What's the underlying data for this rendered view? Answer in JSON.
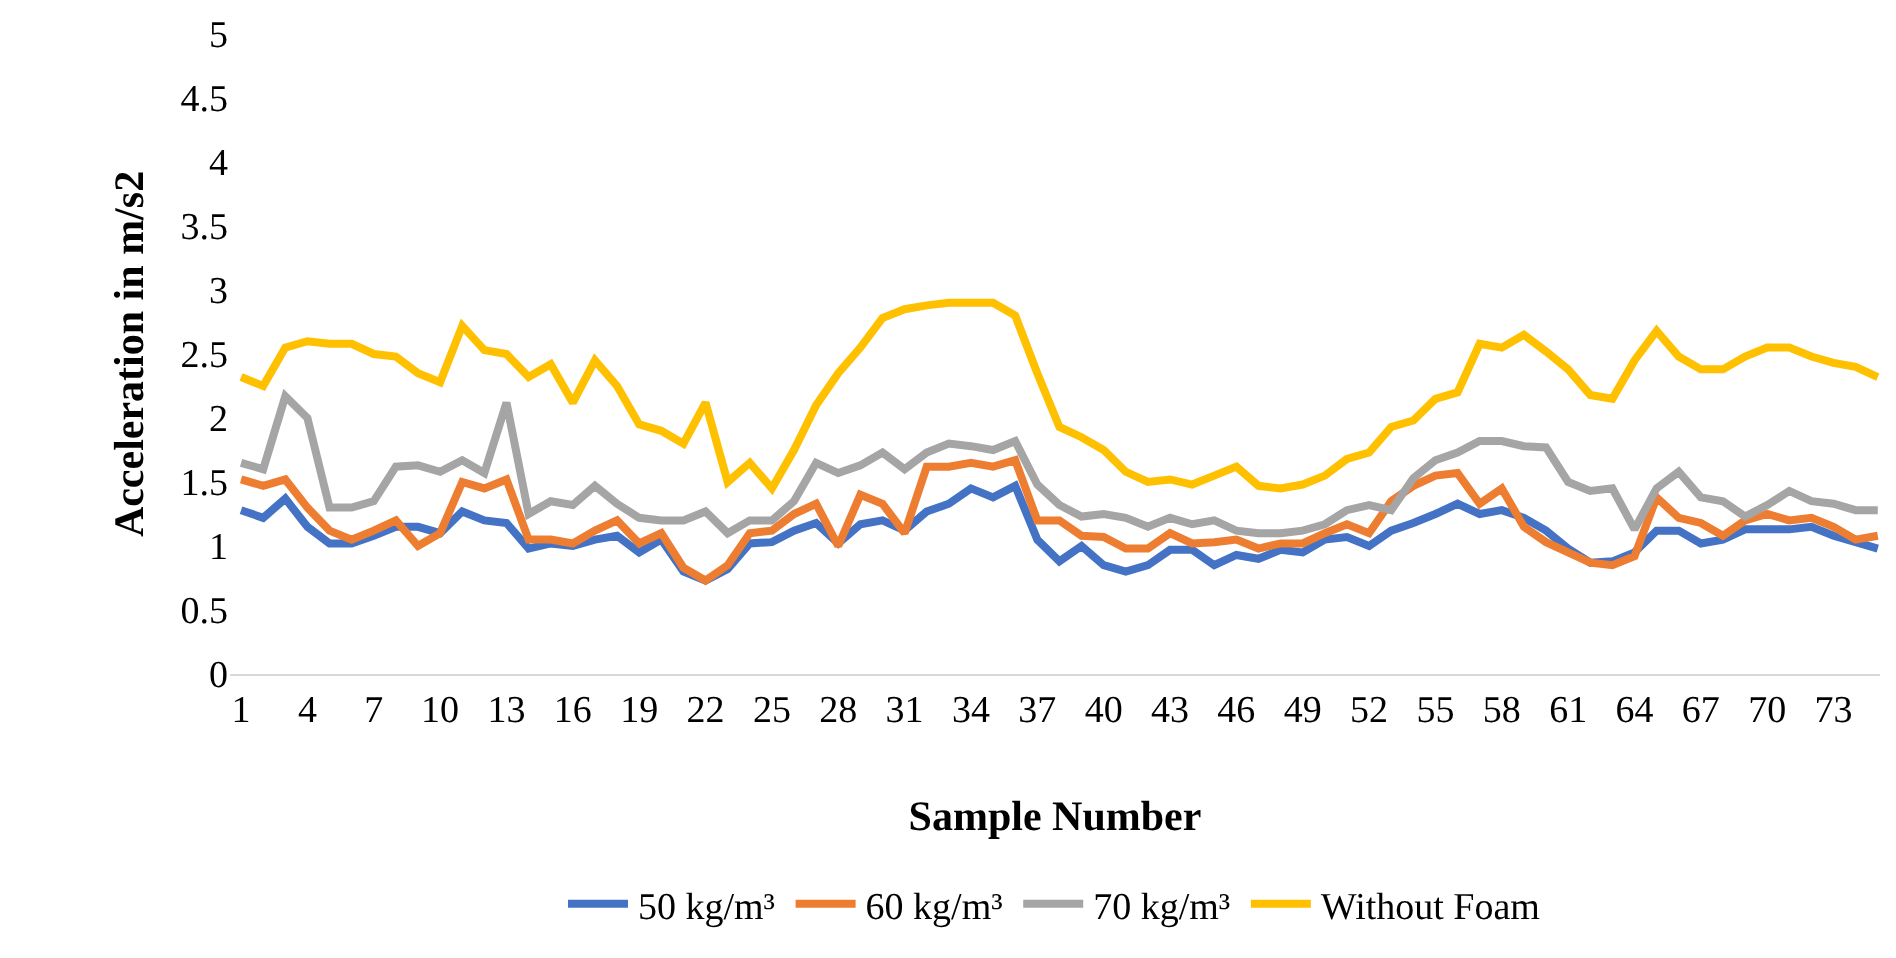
{
  "chart_data": {
    "type": "line",
    "xlabel": "Sample Number",
    "ylabel": "Acceleration in m/s2",
    "x": [
      1,
      2,
      3,
      4,
      5,
      6,
      7,
      8,
      9,
      10,
      11,
      12,
      13,
      14,
      15,
      16,
      17,
      18,
      19,
      20,
      21,
      22,
      23,
      24,
      25,
      26,
      27,
      28,
      29,
      30,
      31,
      32,
      33,
      34,
      35,
      36,
      37,
      38,
      39,
      40,
      41,
      42,
      43,
      44,
      45,
      46,
      47,
      48,
      49,
      50,
      51,
      52,
      53,
      54,
      55,
      56,
      57,
      58,
      59,
      60,
      61,
      62,
      63,
      64,
      65,
      66,
      67,
      68,
      69,
      70,
      71,
      72,
      73,
      74,
      75
    ],
    "xlim": [
      0.5,
      75.1
    ],
    "xticks": [
      1,
      4,
      7,
      10,
      13,
      16,
      19,
      22,
      25,
      28,
      31,
      34,
      37,
      40,
      43,
      46,
      49,
      52,
      55,
      58,
      61,
      64,
      67,
      70,
      73
    ],
    "ylim": [
      0,
      5
    ],
    "yticks": [
      0,
      0.5,
      1,
      1.5,
      2,
      2.5,
      3,
      3.5,
      4,
      4.5,
      5
    ],
    "grid": false,
    "legend": "bottom",
    "marker": "none",
    "line_style": "solid",
    "series": [
      {
        "name": "50 kg/m³",
        "color": "#4472c4",
        "values": [
          1.28,
          1.22,
          1.37,
          1.15,
          1.02,
          1.02,
          1.08,
          1.15,
          1.15,
          1.1,
          1.27,
          1.2,
          1.18,
          0.98,
          1.02,
          1.0,
          1.05,
          1.08,
          0.95,
          1.05,
          0.8,
          0.73,
          0.82,
          1.02,
          1.03,
          1.12,
          1.18,
          1.02,
          1.17,
          1.2,
          1.12,
          1.27,
          1.33,
          1.45,
          1.38,
          1.47,
          1.05,
          0.88,
          1.0,
          0.85,
          0.8,
          0.85,
          0.97,
          0.97,
          0.85,
          0.93,
          0.9,
          0.97,
          0.95,
          1.05,
          1.07,
          1.0,
          1.12,
          1.18,
          1.25,
          1.33,
          1.25,
          1.28,
          1.22,
          1.12,
          0.98,
          0.87,
          0.88,
          0.95,
          1.12,
          1.12,
          1.02,
          1.05,
          1.13,
          1.13,
          1.13,
          1.15,
          1.08,
          1.03,
          0.98
        ]
      },
      {
        "name": "60 kg/m³",
        "color": "#ed7d31",
        "values": [
          1.52,
          1.47,
          1.52,
          1.3,
          1.12,
          1.05,
          1.12,
          1.2,
          1.0,
          1.1,
          1.5,
          1.45,
          1.52,
          1.05,
          1.05,
          1.02,
          1.12,
          1.2,
          1.02,
          1.1,
          0.83,
          0.73,
          0.85,
          1.1,
          1.12,
          1.25,
          1.33,
          1.0,
          1.4,
          1.33,
          1.1,
          1.62,
          1.62,
          1.65,
          1.62,
          1.67,
          1.2,
          1.2,
          1.08,
          1.07,
          0.98,
          0.98,
          1.1,
          1.02,
          1.03,
          1.05,
          0.98,
          1.02,
          1.02,
          1.1,
          1.17,
          1.1,
          1.35,
          1.47,
          1.55,
          1.57,
          1.33,
          1.45,
          1.15,
          1.03,
          0.95,
          0.87,
          0.85,
          0.92,
          1.38,
          1.22,
          1.18,
          1.08,
          1.2,
          1.25,
          1.2,
          1.22,
          1.15,
          1.05,
          1.08
        ]
      },
      {
        "name": "70 kg/m³",
        "color": "#a5a5a5",
        "values": [
          1.65,
          1.6,
          2.17,
          2.0,
          1.3,
          1.3,
          1.35,
          1.62,
          1.63,
          1.58,
          1.67,
          1.57,
          2.12,
          1.25,
          1.35,
          1.32,
          1.47,
          1.33,
          1.22,
          1.2,
          1.2,
          1.27,
          1.1,
          1.2,
          1.2,
          1.35,
          1.65,
          1.57,
          1.63,
          1.73,
          1.6,
          1.73,
          1.8,
          1.78,
          1.75,
          1.82,
          1.48,
          1.32,
          1.23,
          1.25,
          1.22,
          1.15,
          1.22,
          1.17,
          1.2,
          1.12,
          1.1,
          1.1,
          1.12,
          1.17,
          1.28,
          1.32,
          1.28,
          1.53,
          1.67,
          1.73,
          1.82,
          1.82,
          1.78,
          1.77,
          1.5,
          1.43,
          1.45,
          1.13,
          1.45,
          1.58,
          1.38,
          1.35,
          1.23,
          1.32,
          1.43,
          1.35,
          1.33,
          1.28,
          1.28
        ]
      },
      {
        "name": "Without Foam",
        "color": "#ffc000",
        "values": [
          2.32,
          2.25,
          2.55,
          2.6,
          2.58,
          2.58,
          2.5,
          2.48,
          2.35,
          2.28,
          2.72,
          2.53,
          2.5,
          2.32,
          2.42,
          2.12,
          2.45,
          2.25,
          1.95,
          1.9,
          1.8,
          2.12,
          1.5,
          1.65,
          1.45,
          1.75,
          2.1,
          2.35,
          2.55,
          2.78,
          2.85,
          2.88,
          2.9,
          2.9,
          2.9,
          2.8,
          2.35,
          1.93,
          1.85,
          1.75,
          1.58,
          1.5,
          1.52,
          1.48,
          1.55,
          1.62,
          1.47,
          1.45,
          1.48,
          1.55,
          1.68,
          1.73,
          1.93,
          1.98,
          2.15,
          2.2,
          2.58,
          2.55,
          2.65,
          2.52,
          2.38,
          2.18,
          2.15,
          2.45,
          2.68,
          2.48,
          2.38,
          2.38,
          2.48,
          2.55,
          2.55,
          2.48,
          2.43,
          2.4,
          2.32
        ]
      }
    ]
  }
}
